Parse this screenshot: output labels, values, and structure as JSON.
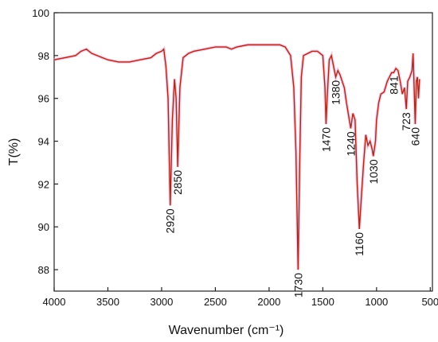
{
  "chart_data": {
    "type": "line",
    "xlabel": "Wavenumber (cm⁻¹)",
    "ylabel": "T(%)",
    "color": "#a8281e",
    "xlim": [
      4000,
      480
    ],
    "xticks": [
      4000,
      3500,
      3000,
      2500,
      2000,
      1500,
      1000,
      500
    ],
    "ylim": [
      87,
      100
    ],
    "yticks": [
      88,
      90,
      92,
      94,
      96,
      98,
      100
    ],
    "x": [
      4000,
      3900,
      3800,
      3750,
      3700,
      3650,
      3600,
      3500,
      3400,
      3300,
      3200,
      3100,
      3050,
      3000,
      2980,
      2960,
      2940,
      2920,
      2900,
      2880,
      2865,
      2850,
      2830,
      2800,
      2750,
      2700,
      2600,
      2500,
      2400,
      2350,
      2300,
      2200,
      2000,
      1900,
      1850,
      1800,
      1770,
      1750,
      1730,
      1715,
      1700,
      1680,
      1600,
      1550,
      1500,
      1480,
      1470,
      1460,
      1440,
      1420,
      1400,
      1380,
      1360,
      1340,
      1300,
      1280,
      1260,
      1240,
      1220,
      1200,
      1180,
      1160,
      1140,
      1120,
      1100,
      1080,
      1060,
      1040,
      1030,
      1010,
      1000,
      980,
      960,
      930,
      900,
      880,
      860,
      841,
      820,
      800,
      780,
      760,
      740,
      723,
      710,
      690,
      670,
      660,
      650,
      640,
      630,
      620,
      610,
      600
    ],
    "values": [
      97.8,
      97.9,
      98.0,
      98.2,
      98.3,
      98.1,
      98.0,
      97.8,
      97.7,
      97.7,
      97.8,
      97.9,
      98.1,
      98.2,
      98.3,
      97.5,
      96.0,
      91.0,
      95.0,
      96.9,
      96.0,
      92.8,
      96.5,
      97.9,
      98.1,
      98.2,
      98.3,
      98.4,
      98.4,
      98.3,
      98.4,
      98.5,
      98.5,
      98.5,
      98.4,
      98.0,
      96.5,
      93.5,
      88.0,
      93.0,
      97.0,
      98.0,
      98.2,
      98.2,
      98.0,
      96.5,
      94.8,
      96.0,
      97.8,
      98.0,
      97.5,
      97.0,
      97.3,
      97.1,
      96.5,
      95.8,
      95.2,
      94.6,
      95.3,
      95.0,
      92.0,
      89.9,
      91.5,
      93.0,
      94.3,
      93.8,
      94.0,
      93.6,
      93.3,
      94.0,
      95.0,
      95.8,
      96.2,
      96.3,
      96.8,
      97.0,
      97.2,
      97.2,
      97.4,
      97.3,
      96.8,
      96.2,
      96.5,
      95.5,
      96.8,
      97.0,
      97.3,
      98.1,
      96.5,
      94.8,
      96.8,
      97.0,
      96.0,
      96.9
    ],
    "peak_labels": [
      2920,
      2850,
      1730,
      1470,
      1380,
      1240,
      1160,
      1030,
      841,
      723,
      640
    ]
  }
}
